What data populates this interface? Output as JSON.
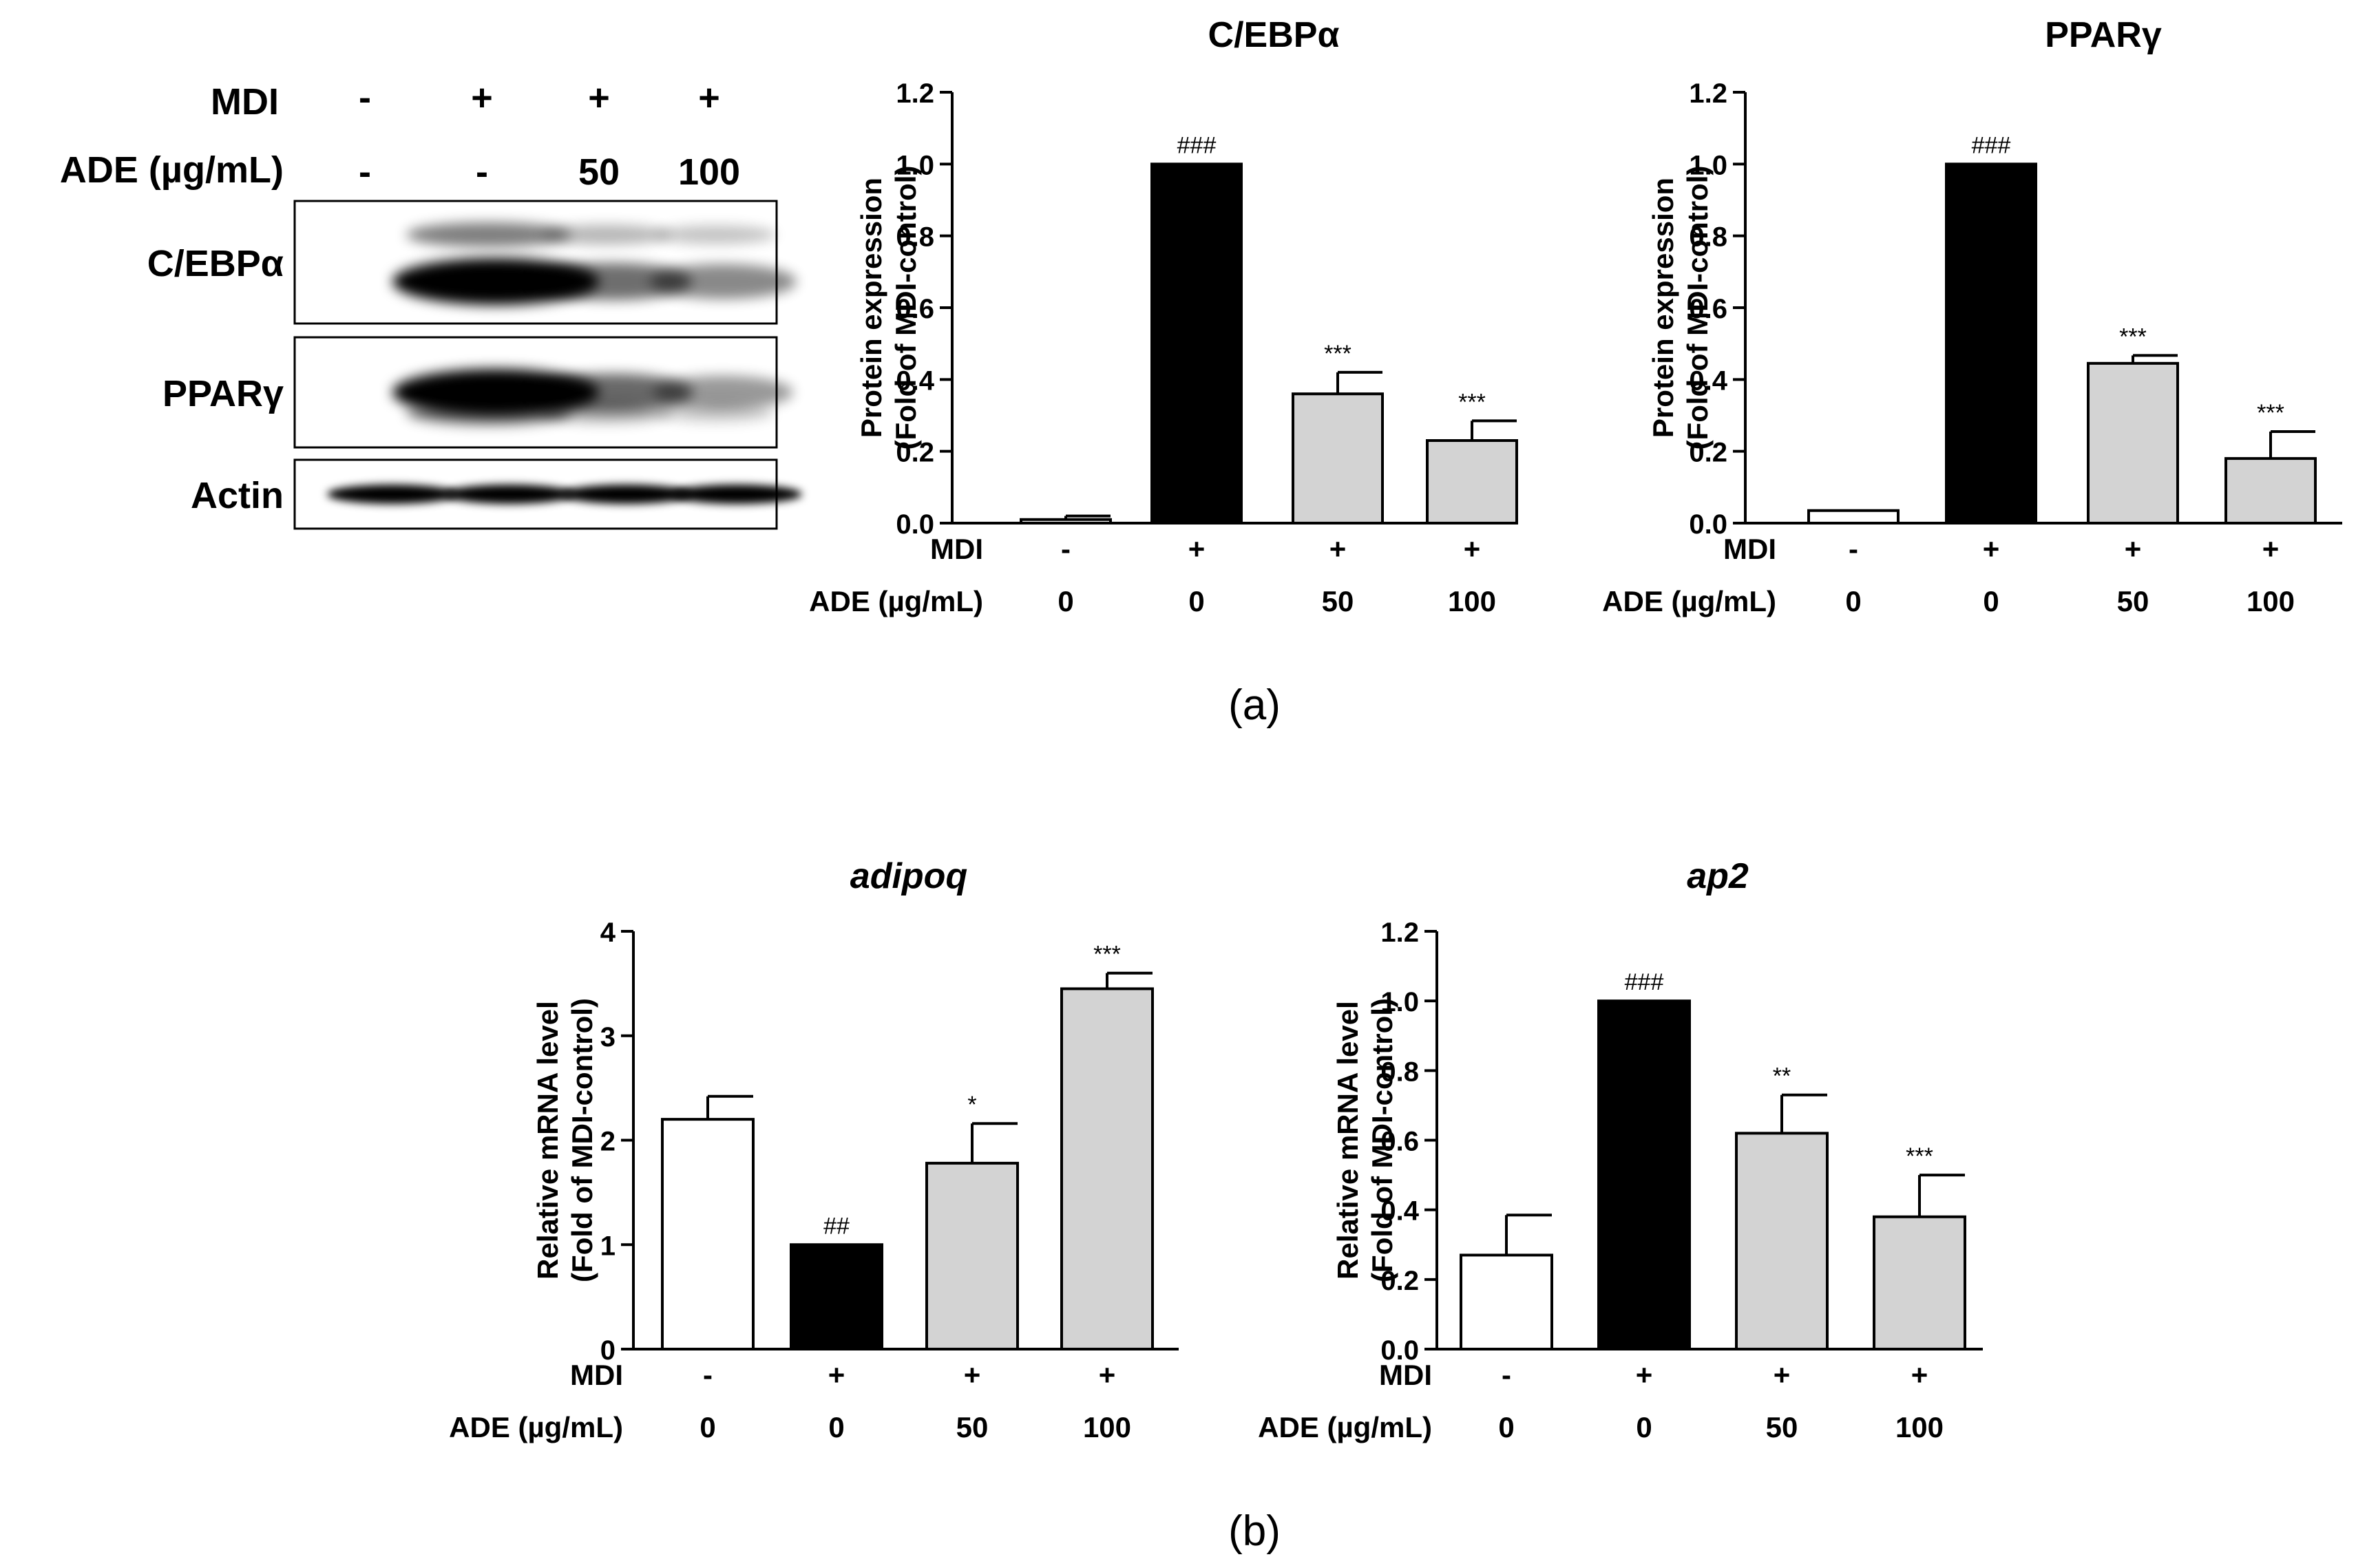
{
  "panel_labels": {
    "a": "(a)",
    "b": "(b)"
  },
  "western_blot": {
    "row_labels": {
      "mdi": "MDI",
      "ade": "ADE (µg/mL)"
    },
    "mdi_values": [
      "-",
      "+",
      "+",
      "+"
    ],
    "ade_values": [
      "-",
      "-",
      "50",
      "100"
    ],
    "bands": [
      {
        "name": "C/EBPα",
        "intensities": [
          0.0,
          1.0,
          0.42,
          0.28
        ]
      },
      {
        "name": "PPARγ",
        "intensities": [
          0.0,
          1.0,
          0.45,
          0.2
        ]
      },
      {
        "name": "Actin",
        "intensities": [
          1.0,
          1.0,
          1.0,
          1.0
        ]
      }
    ]
  },
  "chart_data": [
    {
      "type": "bar",
      "title": "C/EBPα",
      "ylabel": "Protein expression (Fold of MDI-control)",
      "ylabel_lines": [
        "Protein expression",
        "(Fold of MDI-control)"
      ],
      "ylim": [
        0,
        1.2
      ],
      "yticks": [
        "0.0",
        "0.2",
        "0.4",
        "0.6",
        "0.8",
        "1.0",
        "1.2"
      ],
      "values": [
        0.01,
        1.0,
        0.36,
        0.23
      ],
      "errors": [
        0.01,
        0.0,
        0.06,
        0.055
      ],
      "fills": [
        "#ffffff",
        "#000000",
        "#d3d3d3",
        "#d3d3d3"
      ],
      "annotations": [
        "",
        "###",
        "***",
        "***"
      ],
      "mdi": [
        "-",
        "+",
        "+",
        "+"
      ],
      "ade": [
        "0",
        "0",
        "50",
        "100"
      ],
      "row_labels": {
        "mdi": "MDI",
        "ade": "ADE (µg/mL)"
      }
    },
    {
      "type": "bar",
      "title": "PPARγ",
      "ylabel": "Protein expression (Fold of MDI-control)",
      "ylabel_lines": [
        "Protein expression",
        "(Fold of MDI-control)"
      ],
      "ylim": [
        0,
        1.2
      ],
      "yticks": [
        "0.0",
        "0.2",
        "0.4",
        "0.6",
        "0.8",
        "1.0",
        "1.2"
      ],
      "values": [
        0.035,
        1.0,
        0.445,
        0.18
      ],
      "errors": [
        0.0,
        0.0,
        0.022,
        0.075
      ],
      "fills": [
        "#ffffff",
        "#000000",
        "#d3d3d3",
        "#d3d3d3"
      ],
      "annotations": [
        "",
        "###",
        "***",
        "***"
      ],
      "mdi": [
        "-",
        "+",
        "+",
        "+"
      ],
      "ade": [
        "0",
        "0",
        "50",
        "100"
      ],
      "row_labels": {
        "mdi": "MDI",
        "ade": "ADE (µg/mL)"
      }
    },
    {
      "type": "bar",
      "title": "adipoq",
      "ylabel": "Relative mRNA level (Fold of MDI-control)",
      "ylabel_lines": [
        "Relative mRNA level",
        "(Fold of MDI-control)"
      ],
      "ylim": [
        0,
        4
      ],
      "yticks": [
        "0",
        "1",
        "2",
        "3",
        "4"
      ],
      "values": [
        2.2,
        1.0,
        1.78,
        3.45
      ],
      "errors": [
        0.22,
        0.0,
        0.38,
        0.15
      ],
      "fills": [
        "#ffffff",
        "#000000",
        "#d3d3d3",
        "#d3d3d3"
      ],
      "annotations": [
        "",
        "##",
        "*",
        "***"
      ],
      "mdi": [
        "-",
        "+",
        "+",
        "+"
      ],
      "ade": [
        "0",
        "0",
        "50",
        "100"
      ],
      "row_labels": {
        "mdi": "MDI",
        "ade": "ADE (µg/mL)"
      }
    },
    {
      "type": "bar",
      "title": "ap2",
      "ylabel": "Relative mRNA level (Fold of MDI-control)",
      "ylabel_lines": [
        "Relative mRNA level",
        "(Fold of MDI-control)"
      ],
      "ylim": [
        0,
        1.2
      ],
      "yticks": [
        "0.0",
        "0.2",
        "0.4",
        "0.6",
        "0.8",
        "1.0",
        "1.2"
      ],
      "values": [
        0.27,
        1.0,
        0.62,
        0.38
      ],
      "errors": [
        0.115,
        0.0,
        0.11,
        0.12
      ],
      "fills": [
        "#ffffff",
        "#000000",
        "#d3d3d3",
        "#d3d3d3"
      ],
      "annotations": [
        "",
        "###",
        "**",
        "***"
      ],
      "mdi": [
        "-",
        "+",
        "+",
        "+"
      ],
      "ade": [
        "0",
        "0",
        "50",
        "100"
      ],
      "row_labels": {
        "mdi": "MDI",
        "ade": "ADE (µg/mL)"
      }
    }
  ]
}
